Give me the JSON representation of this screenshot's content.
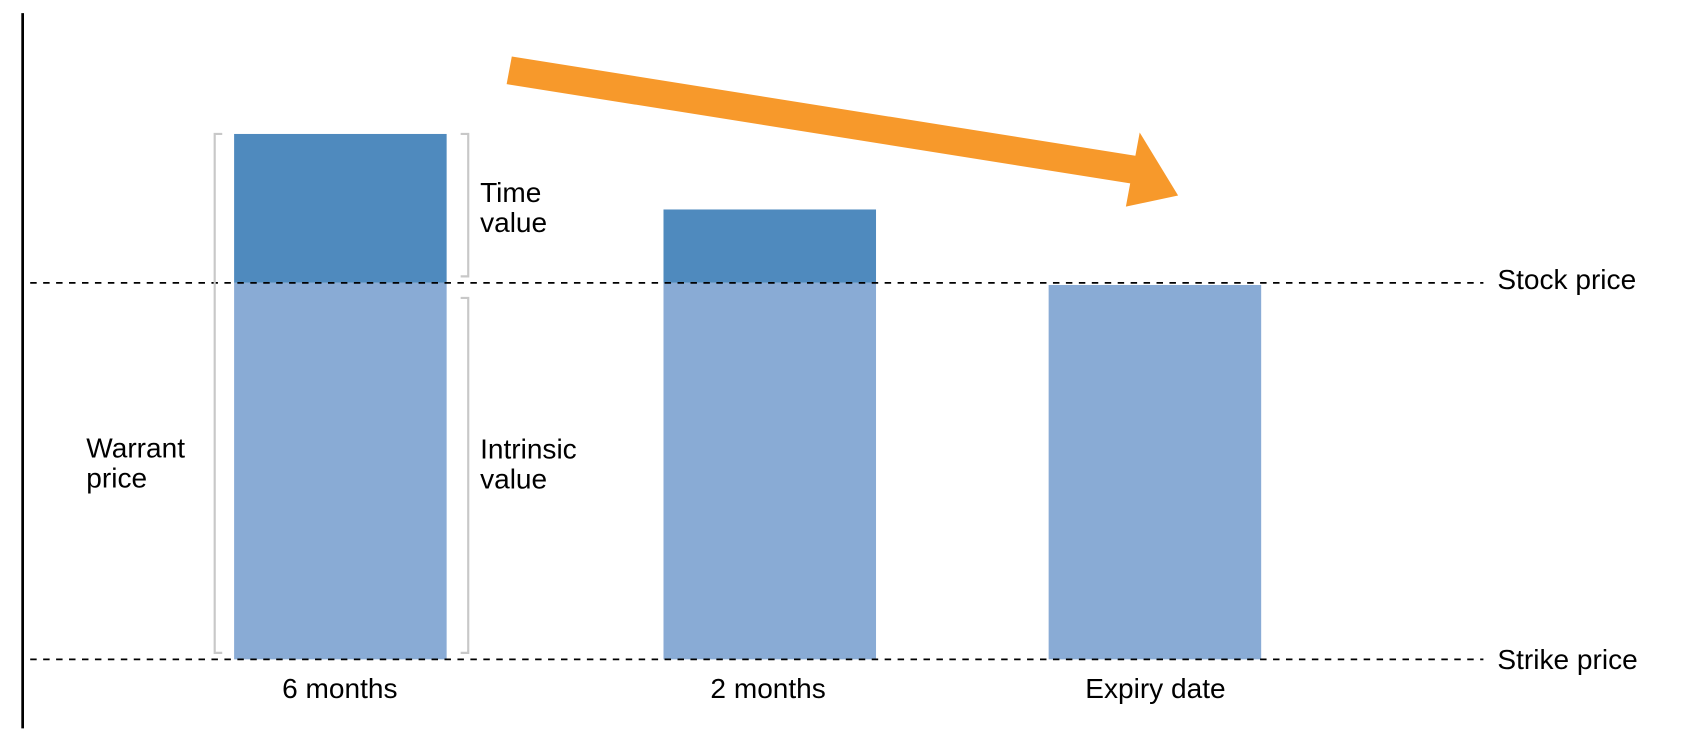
{
  "annotations": {
    "warrant_price": [
      "Warrant",
      "price"
    ],
    "time_value": [
      "Time",
      "value"
    ],
    "intrinsic_value": [
      "Intrinsic",
      "value"
    ]
  },
  "lines": {
    "stock_price": "Stock price",
    "strike_price": "Strike price"
  },
  "bars": [
    "6 months",
    "2 months",
    "Expiry date"
  ]
}
